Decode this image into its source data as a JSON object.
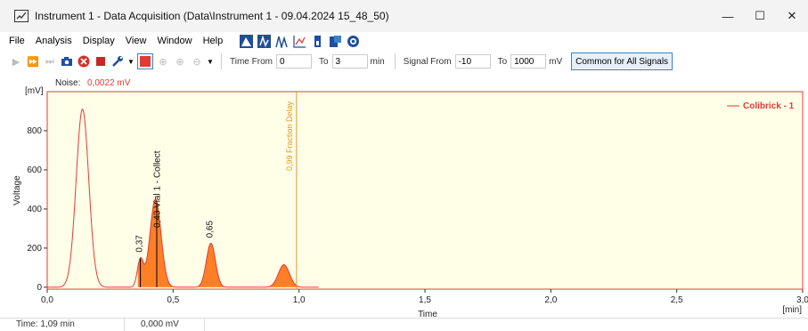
{
  "window": {
    "title": "Instrument 1 - Data Acquisition (Data\\Instrument 1 - 09.04.2024 15_48_50)",
    "min_glyph": "—",
    "max_glyph": "☐",
    "close_glyph": "✕"
  },
  "menu": {
    "file": "File",
    "analysis": "Analysis",
    "display": "Display",
    "view": "View",
    "window": "Window",
    "help": "Help"
  },
  "toolbar": {
    "time_from_label": "Time From",
    "time_from_value": "0",
    "time_to_label": "To",
    "time_to_value": "3",
    "time_unit": "min",
    "signal_from_label": "Signal From",
    "signal_from_value": "-10",
    "signal_to_label": "To",
    "signal_to_value": "1000",
    "signal_unit": "mV",
    "common_button": "Common for All Signals"
  },
  "chart": {
    "noise_label": "Noise:",
    "noise_value": "0,0022 mV",
    "y_unit": "[mV]",
    "x_unit": "[min]",
    "fraction_delay_label": "0,99 Fraction Delay",
    "vial_label": "0,43 Vial 1 - Collect",
    "colors": {
      "signal": "#e53935",
      "fill": "#ff7f27",
      "background": "#ffffe8",
      "delay": "#e6962b"
    }
  },
  "chart_data": {
    "type": "line",
    "xlabel": "Time",
    "ylabel": "Voltage",
    "xlim": [
      0,
      3
    ],
    "ylim": [
      -10,
      1000
    ],
    "x_ticks": [
      "0,0",
      "0,5",
      "1,0",
      "1,5",
      "2,0",
      "2,5",
      "3,0"
    ],
    "y_ticks": [
      "0",
      "200",
      "400",
      "600",
      "800"
    ],
    "series": [
      {
        "name": "Colibrick - 1",
        "peaks": [
          {
            "x": 0.14,
            "y": 910
          },
          {
            "x": 0.37,
            "y": 140
          },
          {
            "x": 0.43,
            "y": 450
          },
          {
            "x": 0.65,
            "y": 225
          },
          {
            "x": 0.94,
            "y": 115
          }
        ]
      }
    ],
    "peak_labels": [
      {
        "x": 0.37,
        "text": "0,37"
      },
      {
        "x": 0.65,
        "text": "0,65"
      }
    ],
    "fraction_delay_x": 0.99,
    "legend_position": "top-right"
  },
  "status": {
    "time": "Time: 1,09 min",
    "value": "0,000 mV"
  }
}
